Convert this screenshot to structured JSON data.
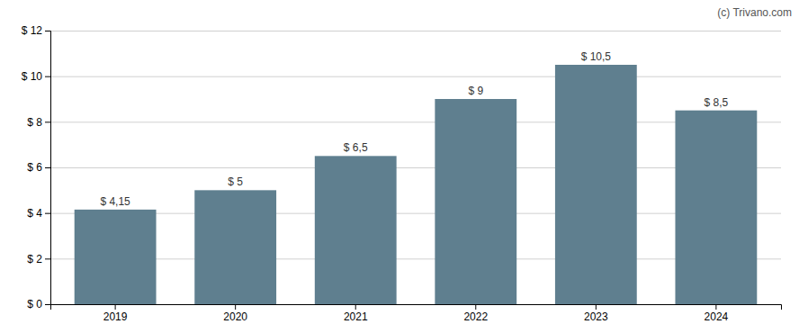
{
  "chart_data": {
    "type": "bar",
    "annotation": "(c) Trivano.com",
    "categories": [
      "2019",
      "2020",
      "2021",
      "2022",
      "2023",
      "2024"
    ],
    "values": [
      4.15,
      5.0,
      6.5,
      9.0,
      10.5,
      8.5
    ],
    "value_labels": [
      "$ 4,15",
      "$ 5",
      "$ 6,5",
      "$ 9",
      "$ 10,5",
      "$ 8,5"
    ],
    "data_labels": true,
    "color": "#5f7f8f",
    "ylim": [
      0,
      12
    ],
    "yticks": [
      {
        "value": 0,
        "label": "$ 0"
      },
      {
        "value": 2,
        "label": "$ 2"
      },
      {
        "value": 4,
        "label": "$ 4"
      },
      {
        "value": 6,
        "label": "$ 6"
      },
      {
        "value": 8,
        "label": "$ 8"
      },
      {
        "value": 10,
        "label": "$ 10"
      },
      {
        "value": 12,
        "label": "$ 12"
      }
    ],
    "grid": true
  }
}
